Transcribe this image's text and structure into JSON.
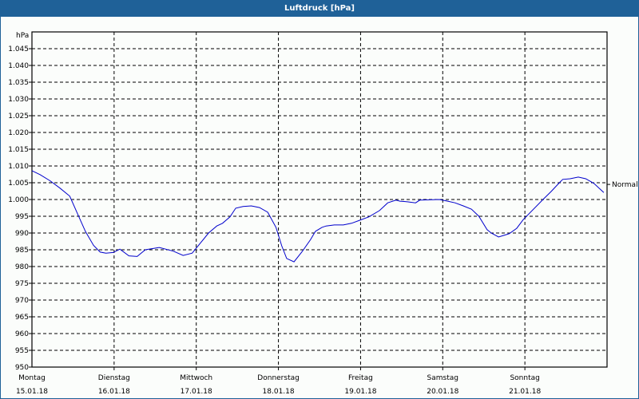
{
  "window": {
    "title": "Luftdruck [hPa]"
  },
  "colors": {
    "titlebar": "#1f6198",
    "series": "#0000cc",
    "grid": "#000000",
    "background": "#fbfdfb"
  },
  "chart_data": {
    "type": "line",
    "title": "Luftdruck [hPa]",
    "ylabel": "hPa",
    "xlabel": "",
    "ylim": [
      950,
      1050
    ],
    "grid": true,
    "y_ticks": [
      {
        "value": 950,
        "label": "950"
      },
      {
        "value": 955,
        "label": "955"
      },
      {
        "value": 960,
        "label": "960"
      },
      {
        "value": 965,
        "label": "965"
      },
      {
        "value": 970,
        "label": "970"
      },
      {
        "value": 975,
        "label": "975"
      },
      {
        "value": 980,
        "label": "980"
      },
      {
        "value": 985,
        "label": "985"
      },
      {
        "value": 990,
        "label": "990"
      },
      {
        "value": 995,
        "label": "995"
      },
      {
        "value": 1000,
        "label": "1.000"
      },
      {
        "value": 1005,
        "label": "1.005"
      },
      {
        "value": 1010,
        "label": "1.010"
      },
      {
        "value": 1015,
        "label": "1.015"
      },
      {
        "value": 1020,
        "label": "1.020"
      },
      {
        "value": 1025,
        "label": "1.025"
      },
      {
        "value": 1030,
        "label": "1.030"
      },
      {
        "value": 1035,
        "label": "1.035"
      },
      {
        "value": 1040,
        "label": "1.040"
      },
      {
        "value": 1045,
        "label": "1.045"
      }
    ],
    "x_ticks": [
      {
        "day": 0,
        "weekday": "Montag",
        "date": "15.01.18"
      },
      {
        "day": 1,
        "weekday": "Dienstag",
        "date": "16.01.18"
      },
      {
        "day": 2,
        "weekday": "Mittwoch",
        "date": "17.01.18"
      },
      {
        "day": 3,
        "weekday": "Donnerstag",
        "date": "18.01.18"
      },
      {
        "day": 4,
        "weekday": "Freitag",
        "date": "19.01.18"
      },
      {
        "day": 5,
        "weekday": "Samstag",
        "date": "20.01.18"
      },
      {
        "day": 6,
        "weekday": "Sonntag",
        "date": "21.01.18"
      }
    ],
    "x_range_days": [
      0,
      7
    ],
    "reference_line": {
      "label": "Normal",
      "value": 1004.5
    },
    "series": [
      {
        "name": "Luftdruck",
        "x_days": [
          0.0,
          0.1,
          0.22,
          0.34,
          0.46,
          0.55,
          0.65,
          0.75,
          0.83,
          0.9,
          0.99,
          1.07,
          1.18,
          1.28,
          1.38,
          1.55,
          1.72,
          1.84,
          1.95,
          2.05,
          2.15,
          2.25,
          2.32,
          2.41,
          2.48,
          2.57,
          2.67,
          2.77,
          2.87,
          2.97,
          3.04,
          3.1,
          3.19,
          3.29,
          3.39,
          3.45,
          3.53,
          3.58,
          3.68,
          3.79,
          3.89,
          3.99,
          4.1,
          4.23,
          4.33,
          4.43,
          4.48,
          4.57,
          4.67,
          4.72,
          4.96,
          5.06,
          5.15,
          5.25,
          5.35,
          5.44,
          5.54,
          5.59,
          5.68,
          5.81,
          5.9,
          5.98,
          6.22,
          6.32,
          6.42,
          6.46,
          6.55,
          6.65,
          6.74,
          6.84,
          6.96
        ],
        "values": [
          1008.6,
          1007.4,
          1005.6,
          1003.4,
          1001.0,
          996.0,
          990.5,
          986.3,
          984.3,
          984.0,
          984.2,
          985.2,
          983.2,
          983.0,
          985.0,
          985.7,
          984.6,
          983.3,
          984.0,
          987.0,
          990.0,
          992.1,
          992.9,
          994.8,
          997.4,
          997.9,
          998.1,
          997.6,
          996.2,
          991.7,
          986.2,
          982.4,
          981.4,
          984.5,
          988.0,
          990.5,
          991.7,
          992.1,
          992.4,
          992.4,
          992.9,
          993.8,
          994.8,
          996.7,
          999.0,
          999.8,
          999.5,
          999.3,
          999.0,
          999.8,
          1000.0,
          999.5,
          999.0,
          998.1,
          997.1,
          995.0,
          991.0,
          990.0,
          988.8,
          989.8,
          991.4,
          994.0,
          1000.0,
          1002.4,
          1005.0,
          1006.0,
          1006.2,
          1006.7,
          1006.2,
          1004.8,
          1002.1
        ]
      }
    ]
  }
}
